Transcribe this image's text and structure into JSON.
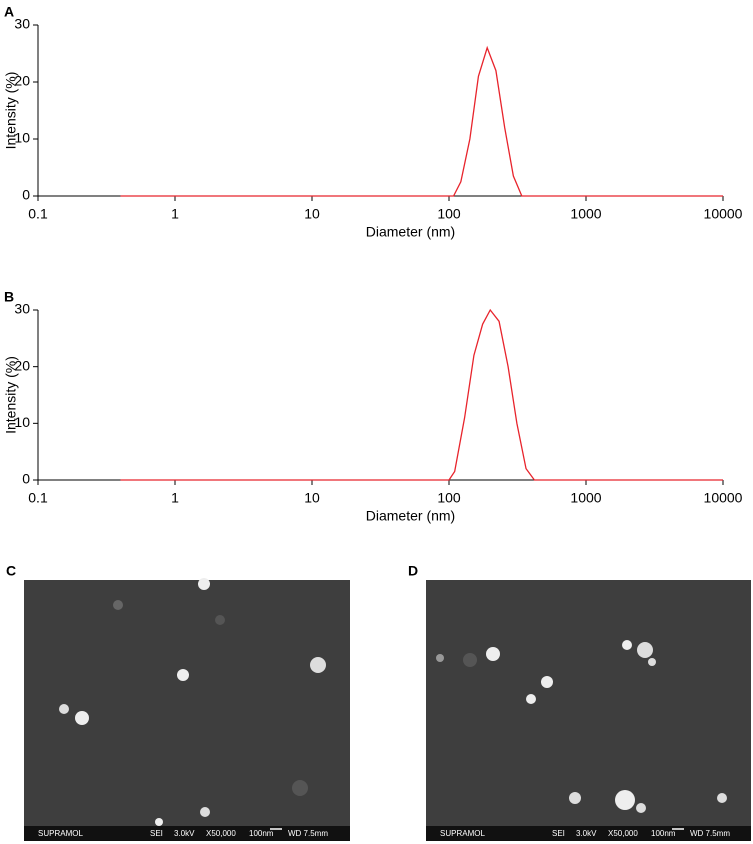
{
  "chart_data": [
    {
      "type": "line",
      "panel_label": "A",
      "xlabel": "Diameter (nm)",
      "ylabel": "Intensity (%)",
      "x": [
        0.4,
        1,
        10,
        100,
        108,
        122,
        142,
        164,
        190,
        220,
        255,
        295,
        340,
        400,
        1000,
        10000
      ],
      "values": [
        0,
        0,
        0,
        0,
        0,
        2.5,
        10,
        21,
        26,
        22,
        12,
        3.5,
        0,
        0,
        0,
        0
      ],
      "color": "#e8242c",
      "log_x": true,
      "xlim": [
        0.1,
        10000
      ],
      "xticks": [
        0.1,
        1,
        10,
        100,
        1000,
        10000
      ],
      "ylim": [
        0,
        30
      ],
      "yticks": [
        0,
        10,
        20,
        30
      ]
    },
    {
      "type": "line",
      "panel_label": "B",
      "xlabel": "Diameter (nm)",
      "ylabel": "Intensity (%)",
      "x": [
        0.4,
        1,
        10,
        100,
        110,
        130,
        152,
        176,
        200,
        232,
        270,
        313,
        365,
        420,
        1000,
        10000
      ],
      "values": [
        0,
        0,
        0,
        0,
        1.5,
        11,
        22,
        27.5,
        30,
        28,
        20,
        10,
        2,
        0,
        0,
        0
      ],
      "color": "#e8242c",
      "log_x": true,
      "xlim": [
        0.1,
        10000
      ],
      "xticks": [
        0.1,
        1,
        10,
        100,
        1000,
        10000
      ],
      "ylim": [
        0,
        30
      ],
      "yticks": [
        0,
        10,
        20,
        30
      ]
    }
  ],
  "panels": [
    {
      "label": "C",
      "info": [
        "SUPRAMOL",
        "SEI",
        "3.0kV",
        "X50,000",
        "100nm",
        "WD 7.5mm"
      ]
    },
    {
      "label": "D",
      "info": [
        "SUPRAMOL",
        "SEI",
        "3.0kV",
        "X50,000",
        "100nm",
        "WD 7.5mm"
      ]
    }
  ]
}
